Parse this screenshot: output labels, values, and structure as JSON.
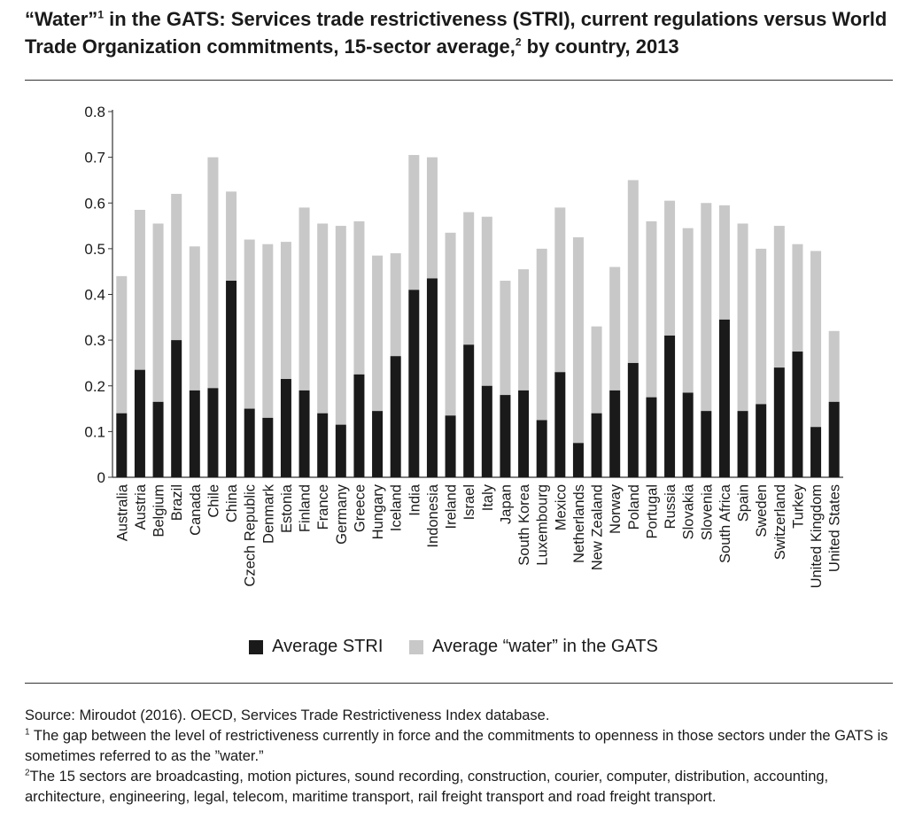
{
  "header": {
    "title_part1": "“Water”",
    "title_sup1": "1",
    "title_part2": " in the GATS: Services trade restrictiveness (STRI), current regulations versus World Trade Organization commitments, 15-sector average,",
    "title_sup2": "2",
    "title_part3": " by country, 2013"
  },
  "colors": {
    "stri": "#1a1a1a",
    "water": "#c8c8c8",
    "axis": "#333333"
  },
  "chart_data": {
    "type": "bar",
    "stacked": true,
    "title": "“Water” in the GATS: Services trade restrictiveness (STRI), current regulations versus World Trade Organization commitments, 15-sector average, by country, 2013",
    "xlabel": "",
    "ylabel": "",
    "ylim": [
      0,
      0.8
    ],
    "yticks": [
      "0",
      "0.1",
      "0.2",
      "0.3",
      "0.4",
      "0.5",
      "0.6",
      "0.7",
      "0.8"
    ],
    "ytick_values": [
      0,
      0.1,
      0.2,
      0.3,
      0.4,
      0.5,
      0.6,
      0.7,
      0.8
    ],
    "grid": false,
    "legend_position": "bottom",
    "categories": [
      "Australia",
      "Austria",
      "Belgium",
      "Brazil",
      "Canada",
      "Chile",
      "China",
      "Czech Republic",
      "Denmark",
      "Estonia",
      "Finland",
      "France",
      "Germany",
      "Greece",
      "Hungary",
      "Iceland",
      "India",
      "Indonesia",
      "Ireland",
      "Israel",
      "Italy",
      "Japan",
      "South Korea",
      "Luxembourg",
      "Mexico",
      "Netherlands",
      "New Zealand",
      "Norway",
      "Poland",
      "Portugal",
      "Russia",
      "Slovakia",
      "Slovenia",
      "South Africa",
      "Spain",
      "Sweden",
      "Switzerland",
      "Turkey",
      "United Kingdom",
      "United States"
    ],
    "series": [
      {
        "name": "Average STRI",
        "values": [
          0.14,
          0.235,
          0.165,
          0.3,
          0.19,
          0.195,
          0.43,
          0.15,
          0.13,
          0.215,
          0.19,
          0.14,
          0.115,
          0.225,
          0.145,
          0.265,
          0.41,
          0.435,
          0.135,
          0.29,
          0.2,
          0.18,
          0.19,
          0.125,
          0.23,
          0.075,
          0.14,
          0.19,
          0.25,
          0.175,
          0.31,
          0.185,
          0.145,
          0.345,
          0.145,
          0.16,
          0.24,
          0.275,
          0.11,
          0.165
        ]
      },
      {
        "name": "Average “water” in the GATS",
        "values": [
          0.3,
          0.35,
          0.39,
          0.32,
          0.315,
          0.505,
          0.195,
          0.37,
          0.38,
          0.3,
          0.4,
          0.415,
          0.435,
          0.335,
          0.34,
          0.225,
          0.295,
          0.265,
          0.4,
          0.29,
          0.37,
          0.25,
          0.265,
          0.375,
          0.36,
          0.45,
          0.19,
          0.27,
          0.4,
          0.385,
          0.295,
          0.36,
          0.455,
          0.25,
          0.41,
          0.34,
          0.31,
          0.235,
          0.385,
          0.155
        ]
      }
    ]
  },
  "footer": {
    "source": "Source: Miroudot (2016). OECD, Services Trade Restrictiveness Index database.",
    "note1_sup": "1",
    "note1": " The gap between the level of restrictiveness currently in force and the commitments to openness in those sectors under the GATS is sometimes referred to as the ”water.”",
    "note2_sup": "2",
    "note2": "The 15 sectors are broadcasting, motion pictures, sound recording, construction, courier, computer, distribution, accounting, architecture, engineering, legal, telecom, maritime transport, rail freight transport and road freight transport."
  }
}
